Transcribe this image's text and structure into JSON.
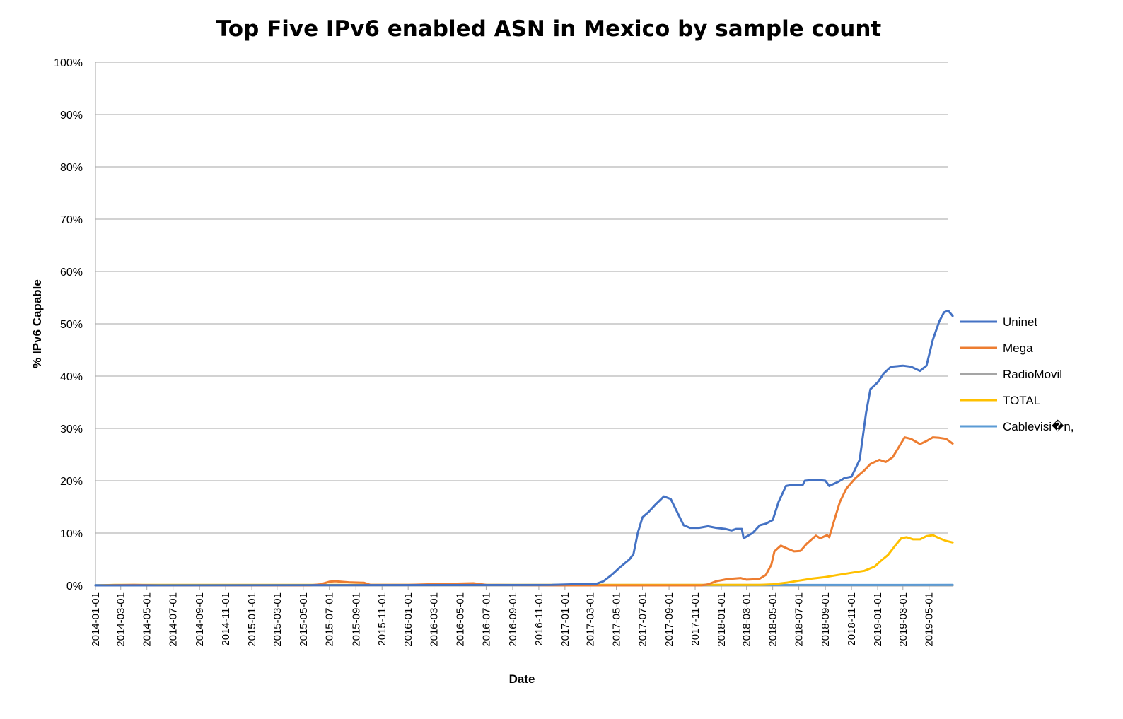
{
  "chart_data": {
    "type": "line",
    "title": "Top Five IPv6 enabled ASN in Mexico by sample count",
    "xlabel": "Date",
    "ylabel": "% IPv6 Capable",
    "x_range": [
      "2014-01-01",
      "2019-06-15"
    ],
    "ylim": [
      0,
      100
    ],
    "y_ticks": [
      "0%",
      "10%",
      "20%",
      "30%",
      "40%",
      "50%",
      "60%",
      "70%",
      "80%",
      "90%",
      "100%"
    ],
    "x_ticks": [
      "2014-01-01",
      "2014-03-01",
      "2014-05-01",
      "2014-07-01",
      "2014-09-01",
      "2014-11-01",
      "2015-01-01",
      "2015-03-01",
      "2015-05-01",
      "2015-07-01",
      "2015-09-01",
      "2015-11-01",
      "2016-01-01",
      "2016-03-01",
      "2016-05-01",
      "2016-07-01",
      "2016-09-01",
      "2016-11-01",
      "2017-01-01",
      "2017-03-01",
      "2017-05-01",
      "2017-07-01",
      "2017-09-01",
      "2017-11-01",
      "2018-01-01",
      "2018-03-01",
      "2018-05-01",
      "2018-07-01",
      "2018-09-01",
      "2018-11-01",
      "2019-01-01",
      "2019-03-01",
      "2019-05-01"
    ],
    "grid": true,
    "legend_position": "right",
    "series": [
      {
        "name": "Uninet",
        "color": "#4472C4",
        "points": [
          [
            "2014-01-01",
            0
          ],
          [
            "2016-12-01",
            0.1
          ],
          [
            "2017-01-15",
            0.2
          ],
          [
            "2017-03-15",
            0.3
          ],
          [
            "2017-04-01",
            0.8
          ],
          [
            "2017-04-20",
            2
          ],
          [
            "2017-05-10",
            3.5
          ],
          [
            "2017-06-01",
            5
          ],
          [
            "2017-06-10",
            6
          ],
          [
            "2017-06-20",
            10
          ],
          [
            "2017-07-01",
            13
          ],
          [
            "2017-07-15",
            14
          ],
          [
            "2017-08-01",
            15.5
          ],
          [
            "2017-08-20",
            17
          ],
          [
            "2017-09-05",
            16.5
          ],
          [
            "2017-09-20",
            14
          ],
          [
            "2017-10-05",
            11.5
          ],
          [
            "2017-10-20",
            11
          ],
          [
            "2017-11-10",
            11
          ],
          [
            "2017-12-01",
            11.3
          ],
          [
            "2017-12-20",
            11
          ],
          [
            "2018-01-10",
            10.8
          ],
          [
            "2018-01-25",
            10.5
          ],
          [
            "2018-02-05",
            10.8
          ],
          [
            "2018-02-18",
            10.8
          ],
          [
            "2018-02-22",
            9
          ],
          [
            "2018-03-15",
            10
          ],
          [
            "2018-04-01",
            11.5
          ],
          [
            "2018-04-15",
            11.8
          ],
          [
            "2018-05-01",
            12.5
          ],
          [
            "2018-05-15",
            16
          ],
          [
            "2018-06-01",
            19
          ],
          [
            "2018-06-15",
            19.2
          ],
          [
            "2018-07-10",
            19.2
          ],
          [
            "2018-07-15",
            20
          ],
          [
            "2018-08-10",
            20.2
          ],
          [
            "2018-09-01",
            20
          ],
          [
            "2018-09-10",
            19
          ],
          [
            "2018-10-01",
            19.8
          ],
          [
            "2018-10-15",
            20.5
          ],
          [
            "2018-11-01",
            20.8
          ],
          [
            "2018-11-20",
            24
          ],
          [
            "2018-12-05",
            33
          ],
          [
            "2018-12-15",
            37.5
          ],
          [
            "2019-01-01",
            38.8
          ],
          [
            "2019-01-15",
            40.5
          ],
          [
            "2019-02-01",
            41.8
          ],
          [
            "2019-03-01",
            42
          ],
          [
            "2019-03-20",
            41.8
          ],
          [
            "2019-04-10",
            41
          ],
          [
            "2019-04-25",
            42
          ],
          [
            "2019-05-10",
            47
          ],
          [
            "2019-05-25",
            50.5
          ],
          [
            "2019-06-05",
            52.2
          ],
          [
            "2019-06-15",
            52.5
          ],
          [
            "2019-06-25",
            51.5
          ]
        ]
      },
      {
        "name": "Mega",
        "color": "#ED7D31",
        "points": [
          [
            "2014-01-01",
            0
          ],
          [
            "2014-04-01",
            0.1
          ],
          [
            "2014-06-01",
            0
          ],
          [
            "2015-05-15",
            0
          ],
          [
            "2015-06-10",
            0.2
          ],
          [
            "2015-07-01",
            0.7
          ],
          [
            "2015-07-15",
            0.8
          ],
          [
            "2015-08-15",
            0.6
          ],
          [
            "2015-09-20",
            0.5
          ],
          [
            "2015-10-05",
            0.1
          ],
          [
            "2016-01-01",
            0.1
          ],
          [
            "2016-04-01",
            0.3
          ],
          [
            "2016-06-01",
            0.4
          ],
          [
            "2016-07-01",
            0.1
          ],
          [
            "2017-01-01",
            0
          ],
          [
            "2017-11-15",
            0
          ],
          [
            "2017-12-01",
            0.2
          ],
          [
            "2017-12-20",
            0.8
          ],
          [
            "2018-01-15",
            1.2
          ],
          [
            "2018-02-15",
            1.4
          ],
          [
            "2018-03-01",
            1.1
          ],
          [
            "2018-03-30",
            1.2
          ],
          [
            "2018-04-15",
            2
          ],
          [
            "2018-04-28",
            4
          ],
          [
            "2018-05-05",
            6.5
          ],
          [
            "2018-05-20",
            7.6
          ],
          [
            "2018-06-05",
            7
          ],
          [
            "2018-06-20",
            6.5
          ],
          [
            "2018-07-05",
            6.6
          ],
          [
            "2018-07-20",
            8
          ],
          [
            "2018-08-10",
            9.5
          ],
          [
            "2018-08-20",
            9
          ],
          [
            "2018-09-05",
            9.6
          ],
          [
            "2018-09-10",
            9.2
          ],
          [
            "2018-09-20",
            12
          ],
          [
            "2018-10-05",
            16
          ],
          [
            "2018-10-20",
            18.5
          ],
          [
            "2018-11-10",
            20.5
          ],
          [
            "2018-12-01",
            22
          ],
          [
            "2018-12-15",
            23.2
          ],
          [
            "2019-01-05",
            24
          ],
          [
            "2019-01-20",
            23.6
          ],
          [
            "2019-02-05",
            24.5
          ],
          [
            "2019-02-20",
            26.5
          ],
          [
            "2019-03-05",
            28.3
          ],
          [
            "2019-03-20",
            28
          ],
          [
            "2019-04-10",
            27
          ],
          [
            "2019-04-25",
            27.6
          ],
          [
            "2019-05-10",
            28.3
          ],
          [
            "2019-05-25",
            28.2
          ],
          [
            "2019-06-10",
            28
          ],
          [
            "2019-06-25",
            27.1
          ]
        ]
      },
      {
        "name": "RadioMovil",
        "color": "#A5A5A5",
        "points": [
          [
            "2014-01-01",
            0
          ],
          [
            "2019-06-25",
            0
          ]
        ]
      },
      {
        "name": "TOTAL",
        "color": "#FFC000",
        "points": [
          [
            "2014-01-01",
            0
          ],
          [
            "2014-02-15",
            0.1
          ],
          [
            "2015-03-01",
            0.1
          ],
          [
            "2015-05-01",
            0.1
          ],
          [
            "2017-06-01",
            0.1
          ],
          [
            "2017-08-01",
            0.1
          ],
          [
            "2018-04-01",
            0.1
          ],
          [
            "2018-05-01",
            0.2
          ],
          [
            "2018-06-01",
            0.5
          ],
          [
            "2018-07-01",
            0.9
          ],
          [
            "2018-08-01",
            1.3
          ],
          [
            "2018-09-01",
            1.6
          ],
          [
            "2018-10-01",
            2
          ],
          [
            "2018-11-01",
            2.4
          ],
          [
            "2018-12-01",
            2.8
          ],
          [
            "2018-12-25",
            3.6
          ],
          [
            "2019-01-10",
            4.8
          ],
          [
            "2019-01-25",
            5.8
          ],
          [
            "2019-02-10",
            7.5
          ],
          [
            "2019-02-25",
            9
          ],
          [
            "2019-03-10",
            9.2
          ],
          [
            "2019-03-25",
            8.8
          ],
          [
            "2019-04-10",
            8.8
          ],
          [
            "2019-04-25",
            9.4
          ],
          [
            "2019-05-10",
            9.6
          ],
          [
            "2019-05-25",
            9
          ],
          [
            "2019-06-10",
            8.5
          ],
          [
            "2019-06-25",
            8.2
          ]
        ]
      },
      {
        "name": "Cablevisi�n,",
        "color": "#5B9BD5",
        "points": [
          [
            "2014-01-01",
            0.05
          ],
          [
            "2019-06-25",
            0.1
          ]
        ]
      }
    ]
  }
}
